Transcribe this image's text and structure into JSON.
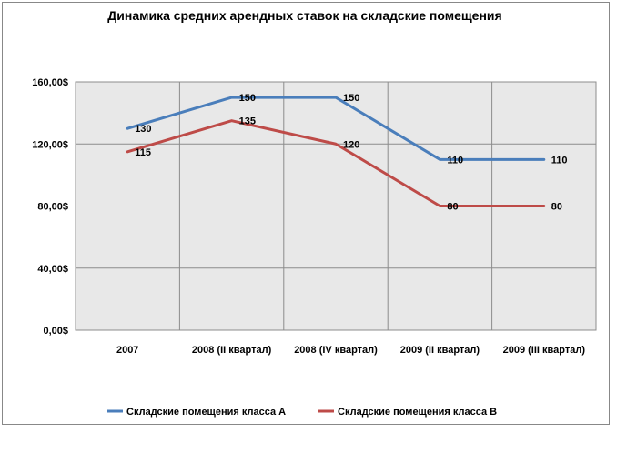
{
  "chart_data": {
    "type": "line",
    "title": "Динамика средних  арендных ставок на складские помещения",
    "xlabel": "",
    "ylabel": "",
    "categories": [
      "2007",
      "2008 (II квартал)",
      "2008 (IV квартал)",
      "2009 (II квартал)",
      "2009 (III квартал)"
    ],
    "ylim": [
      0,
      160
    ],
    "yticks": [
      0,
      40,
      80,
      120,
      160
    ],
    "ytick_labels": [
      "0,00$",
      "40,00$",
      "80,00$",
      "120,00$",
      "160,00$"
    ],
    "grid": true,
    "legend_position": "bottom",
    "series": [
      {
        "name": "Складские помещения класса А",
        "values": [
          130,
          150,
          150,
          110,
          110
        ],
        "labels": [
          "130",
          "150",
          "150",
          "110",
          "110"
        ],
        "color": "#4a7ebb"
      },
      {
        "name": "Складские помещения класса В",
        "values": [
          115,
          135,
          120,
          80,
          80
        ],
        "labels": [
          "115",
          "135",
          "120",
          "80",
          "80"
        ],
        "color": "#be4b48"
      }
    ]
  },
  "colors": {
    "plot_background": "#e8e8e8",
    "grid": "#8c8c8c",
    "frame": "#888888"
  }
}
